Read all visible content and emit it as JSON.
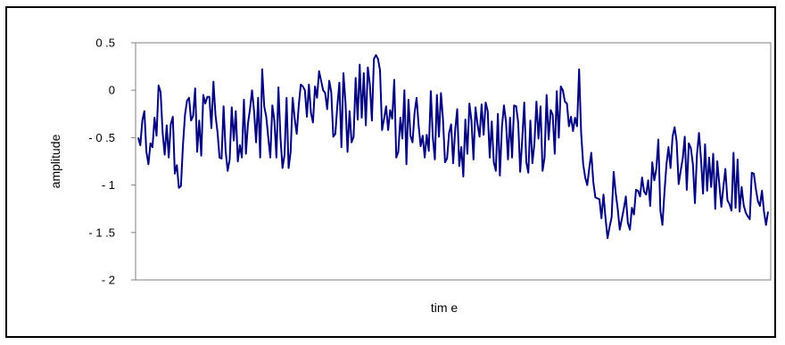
{
  "chart_data": {
    "type": "line",
    "title": "",
    "xlabel": "tim e",
    "ylabel": "amplitude",
    "ylim": [
      -2,
      0.5
    ],
    "yticks": [
      0.5,
      0,
      -0.5,
      -1,
      -1.5,
      -2
    ],
    "ytick_labels": [
      "0 .5",
      "0",
      "- 0 .5",
      "- 1",
      "- 1 .5",
      "- 2"
    ],
    "grid": false,
    "legend": "none",
    "line_color": "#000080",
    "series": [
      {
        "values": [
          -0.5,
          -0.58,
          -0.32,
          -0.22,
          -0.65,
          -0.78,
          -0.56,
          -0.6,
          -0.29,
          -0.48,
          0.05,
          -0.02,
          -0.45,
          -0.68,
          -0.37,
          -0.71,
          -0.36,
          -0.28,
          -0.88,
          -0.79,
          -1.03,
          -1.01,
          -0.58,
          -0.26,
          -0.11,
          -0.08,
          -0.32,
          -0.27,
          0.02,
          -0.65,
          -0.32,
          -0.69,
          -0.05,
          -0.14,
          -0.07,
          -0.07,
          -0.4,
          0.09,
          -0.26,
          -0.44,
          -0.71,
          -0.72,
          -0.17,
          -0.64,
          -0.85,
          -0.73,
          -0.18,
          -0.53,
          -0.22,
          -0.75,
          -0.58,
          -0.71,
          -0.1,
          -0.67,
          -0.35,
          -0.2,
          0.0,
          -0.22,
          -0.55,
          -0.08,
          -0.71,
          0.22,
          -0.17,
          -0.28,
          -0.5,
          -0.71,
          -0.16,
          -0.32,
          -0.71,
          0.03,
          -0.5,
          -0.82,
          -0.68,
          -0.08,
          -0.82,
          -0.65,
          -0.08,
          -0.3,
          -0.46,
          -0.16,
          0.06,
          0.04,
          0.0,
          -0.28,
          0.06,
          -0.24,
          -0.34,
          0.04,
          -0.08,
          0.2,
          0.1,
          0.0,
          -0.03,
          -0.2,
          0.1,
          -0.02,
          -0.49,
          -0.46,
          -0.16,
          0.08,
          -0.6,
          0.18,
          -0.13,
          -0.65,
          -0.22,
          -0.55,
          -0.49,
          0.13,
          -0.31,
          0.27,
          -0.29,
          0.18,
          -0.37,
          0.24,
          0.06,
          -0.32,
          0.33,
          0.37,
          0.33,
          0.21,
          -0.42,
          -0.3,
          -0.17,
          -0.42,
          -0.21,
          -0.3,
          0.11,
          -0.71,
          -0.65,
          -0.29,
          -0.51,
          0.0,
          -0.78,
          -0.1,
          -0.48,
          -0.55,
          -0.24,
          -0.08,
          -0.37,
          -0.59,
          -0.48,
          -0.71,
          -0.47,
          -0.64,
          -0.01,
          -0.5,
          -0.73,
          -0.05,
          -0.49,
          -0.03,
          -0.31,
          -0.76,
          -0.72,
          -0.45,
          -0.36,
          -0.77,
          -0.42,
          -0.2,
          -0.8,
          -0.6,
          -0.91,
          -0.31,
          -0.67,
          -0.14,
          -0.32,
          -0.73,
          -0.18,
          -0.36,
          -0.49,
          -0.15,
          -0.47,
          -0.13,
          -0.22,
          -0.71,
          -0.33,
          -0.76,
          -0.85,
          -0.25,
          -0.9,
          -0.39,
          -0.16,
          -0.33,
          -0.73,
          -0.29,
          -0.71,
          -0.16,
          -0.17,
          -0.34,
          -0.86,
          -0.52,
          -0.13,
          -0.76,
          -0.87,
          -0.32,
          -0.77,
          -0.56,
          -0.12,
          -0.51,
          -0.17,
          -0.85,
          -0.71,
          -0.05,
          -0.52,
          -0.21,
          -0.26,
          -0.67,
          -0.01,
          -0.5,
          0.04,
          0.0,
          -0.12,
          -0.14,
          -0.38,
          -0.28,
          -0.43,
          -0.29,
          -0.38,
          0.22,
          -0.45,
          -0.78,
          -0.92,
          -1.0,
          -0.82,
          -0.66,
          -0.97,
          -1.13,
          -1.14,
          -1.15,
          -1.35,
          -1.1,
          -1.35,
          -1.56,
          -1.44,
          -1.34,
          -0.86,
          -1.08,
          -1.25,
          -1.47,
          -1.36,
          -1.25,
          -1.12,
          -1.4,
          -1.47,
          -1.24,
          -1.31,
          -1.05,
          -1.06,
          -1.12,
          -0.92,
          -1.07,
          -1.1,
          -0.95,
          -1.22,
          -0.76,
          -0.95,
          -0.83,
          -0.52,
          -1.27,
          -1.42,
          -1.08,
          -0.78,
          -0.6,
          -0.82,
          -0.49,
          -0.39,
          -0.54,
          -0.99,
          -0.85,
          -0.72,
          -0.49,
          -1.05,
          -0.56,
          -0.61,
          -0.78,
          -1.19,
          -0.68,
          -0.45,
          -0.73,
          -1.09,
          -0.57,
          -1.06,
          -0.71,
          -1.02,
          -0.67,
          -1.25,
          -0.75,
          -0.99,
          -1.23,
          -1.02,
          -0.83,
          -1.16,
          -1.2,
          -1.27,
          -0.66,
          -1.24,
          -0.73,
          -1.28,
          -1.02,
          -1.21,
          -1.29,
          -1.33,
          -1.36,
          -0.87,
          -0.88,
          -1.04,
          -1.17,
          -1.22,
          -1.06,
          -1.28,
          -1.42,
          -1.28
        ]
      }
    ]
  }
}
